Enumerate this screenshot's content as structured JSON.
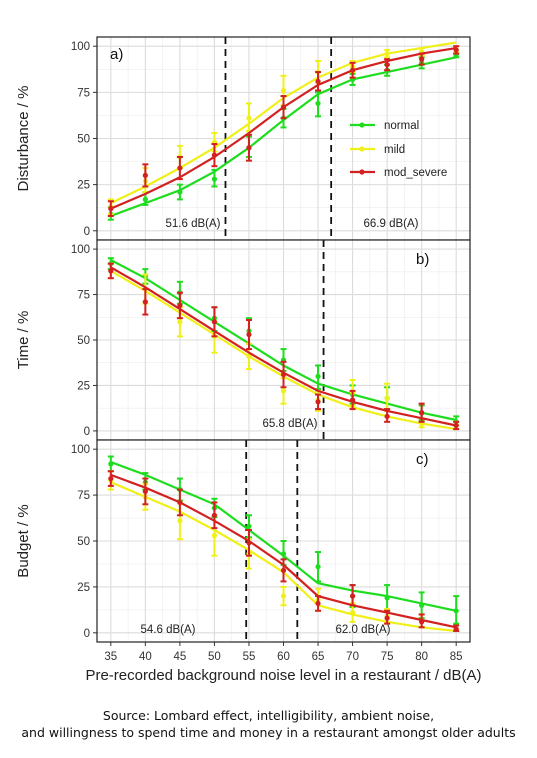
{
  "chart_data": [
    {
      "type": "line",
      "panel_label": "a)",
      "ylabel": "Disturbance / %",
      "x": [
        35,
        40,
        45,
        50,
        55,
        60,
        65,
        70,
        75,
        80,
        85
      ],
      "xlim": [
        33,
        87
      ],
      "ylim": [
        -5,
        105
      ],
      "yticks": [
        0,
        25,
        50,
        75,
        100
      ],
      "thresholds": [
        {
          "x": 51.6,
          "label": "51.6 dB(A)"
        },
        {
          "x": 66.9,
          "label": "66.9 dB(A)"
        }
      ],
      "legend": {
        "placement": "right",
        "entries": [
          "normal",
          "mild",
          "mod_severe"
        ]
      },
      "series": [
        {
          "name": "normal",
          "color": "#1edc1e",
          "fit": [
            8,
            15,
            22,
            32,
            45,
            60,
            74,
            82,
            86,
            90,
            94
          ],
          "points": [
            [
              35,
              9,
              6,
              13
            ],
            [
              40,
              17,
              14,
              21
            ],
            [
              45,
              21,
              17,
              25
            ],
            [
              50,
              28,
              24,
              33
            ],
            [
              55,
              45,
              40,
              51
            ],
            [
              60,
              61,
              56,
              66
            ],
            [
              65,
              69,
              62,
              75
            ],
            [
              70,
              82,
              79,
              85
            ],
            [
              75,
              87,
              84,
              90
            ],
            [
              80,
              91,
              88,
              94
            ],
            [
              85,
              95,
              94,
              96
            ]
          ]
        },
        {
          "name": "mild",
          "color": "#f0f019",
          "fit": [
            15,
            24,
            34,
            45,
            58,
            72,
            83,
            91,
            96,
            99,
            102
          ],
          "points": [
            [
              35,
              13,
              9,
              17
            ],
            [
              40,
              27,
              21,
              34
            ],
            [
              45,
              40,
              34,
              46
            ],
            [
              50,
              48,
              43,
              53
            ],
            [
              55,
              61,
              54,
              69
            ],
            [
              60,
              76,
              68,
              84
            ],
            [
              65,
              86,
              80,
              92
            ],
            [
              70,
              89,
              86,
              92
            ],
            [
              75,
              96,
              94,
              98
            ],
            [
              80,
              97,
              95,
              99
            ],
            [
              85,
              98,
              97,
              100
            ]
          ]
        },
        {
          "name": "mod_severe",
          "color": "#d32020",
          "fit": [
            12,
            20,
            29,
            40,
            53,
            67,
            79,
            87,
            92,
            96,
            99
          ],
          "points": [
            [
              35,
              12,
              8,
              16
            ],
            [
              40,
              30,
              24,
              36
            ],
            [
              45,
              34,
              28,
              40
            ],
            [
              50,
              41,
              35,
              47
            ],
            [
              55,
              45,
              38,
              52
            ],
            [
              60,
              67,
              61,
              73
            ],
            [
              65,
              81,
              76,
              86
            ],
            [
              70,
              87,
              83,
              91
            ],
            [
              75,
              90,
              87,
              93
            ],
            [
              80,
              93,
              90,
              96
            ],
            [
              85,
              98,
              96,
              100
            ]
          ]
        }
      ]
    },
    {
      "type": "line",
      "panel_label": "b)",
      "ylabel": "Time / %",
      "x": [
        35,
        40,
        45,
        50,
        55,
        60,
        65,
        70,
        75,
        80,
        85
      ],
      "xlim": [
        33,
        87
      ],
      "ylim": [
        -5,
        105
      ],
      "yticks": [
        0,
        25,
        50,
        75,
        100
      ],
      "thresholds": [
        {
          "x": 65.8,
          "label": "65.8 dB(A)"
        }
      ],
      "series": [
        {
          "name": "normal",
          "color": "#1edc1e",
          "fit": [
            94,
            84,
            72,
            60,
            48,
            36,
            26,
            20,
            15,
            10,
            6
          ],
          "points": [
            [
              35,
              92,
              89,
              95
            ],
            [
              40,
              85,
              81,
              89
            ],
            [
              45,
              76,
              70,
              82
            ],
            [
              50,
              62,
              55,
              68
            ],
            [
              55,
              55,
              48,
              62
            ],
            [
              60,
              39,
              33,
              45
            ],
            [
              65,
              30,
              23,
              36
            ],
            [
              70,
              20,
              15,
              25
            ],
            [
              75,
              18,
              12,
              24
            ],
            [
              80,
              10,
              6,
              14
            ],
            [
              85,
              5,
              3,
              8
            ]
          ]
        },
        {
          "name": "mild",
          "color": "#f0f019",
          "fit": [
            88,
            77,
            65,
            53,
            41,
            30,
            20,
            13,
            8,
            4,
            1
          ],
          "points": [
            [
              35,
              88,
              84,
              92
            ],
            [
              40,
              78,
              70,
              86
            ],
            [
              45,
              60,
              52,
              68
            ],
            [
              50,
              52,
              43,
              60
            ],
            [
              55,
              41,
              34,
              48
            ],
            [
              60,
              22,
              15,
              29
            ],
            [
              65,
              17,
              11,
              22
            ],
            [
              70,
              21,
              14,
              28
            ],
            [
              75,
              18,
              11,
              26
            ],
            [
              80,
              4,
              2,
              7
            ],
            [
              85,
              3,
              1,
              5
            ]
          ]
        },
        {
          "name": "mod_severe",
          "color": "#d32020",
          "fit": [
            90,
            79,
            67,
            55,
            43,
            32,
            22,
            16,
            11,
            7,
            3
          ],
          "points": [
            [
              35,
              88,
              84,
              92
            ],
            [
              40,
              71,
              64,
              78
            ],
            [
              45,
              69,
              62,
              76
            ],
            [
              50,
              60,
              52,
              68
            ],
            [
              55,
              53,
              45,
              61
            ],
            [
              60,
              31,
              24,
              38
            ],
            [
              65,
              16,
              12,
              20
            ],
            [
              70,
              17,
              12,
              22
            ],
            [
              75,
              8,
              5,
              12
            ],
            [
              80,
              10,
              5,
              15
            ],
            [
              85,
              3,
              1,
              5
            ]
          ]
        }
      ]
    },
    {
      "type": "line",
      "panel_label": "c)",
      "ylabel": "Budget / %",
      "xlabel": "Pre-recorded background noise level in a restaurant / dB(A)",
      "x": [
        35,
        40,
        45,
        50,
        55,
        60,
        65,
        70,
        75,
        80,
        85
      ],
      "xlim": [
        33,
        87
      ],
      "ylim": [
        -5,
        105
      ],
      "yticks": [
        0,
        25,
        50,
        75,
        100
      ],
      "xticks": [
        35,
        40,
        45,
        50,
        55,
        60,
        65,
        70,
        75,
        80,
        85
      ],
      "thresholds": [
        {
          "x": 54.6,
          "label": "54.6 dB(A)"
        },
        {
          "x": 62.0,
          "label": "62.0 dB(A)"
        }
      ],
      "series": [
        {
          "name": "normal",
          "color": "#1edc1e",
          "fit": [
            93,
            86,
            78,
            70,
            56,
            42,
            27,
            23,
            20,
            16,
            12
          ],
          "points": [
            [
              35,
              92,
              88,
              96
            ],
            [
              40,
              82,
              78,
              87
            ],
            [
              45,
              78,
              72,
              84
            ],
            [
              50,
              68,
              63,
              73
            ],
            [
              55,
              58,
              52,
              64
            ],
            [
              60,
              43,
              37,
              50
            ],
            [
              65,
              36,
              28,
              44
            ],
            [
              70,
              20,
              14,
              26
            ],
            [
              75,
              19,
              12,
              26
            ],
            [
              80,
              15,
              8,
              22
            ],
            [
              85,
              12,
              5,
              20
            ]
          ]
        },
        {
          "name": "mild",
          "color": "#f0f019",
          "fit": [
            82,
            74,
            66,
            56,
            45,
            33,
            15,
            10,
            6,
            3,
            1
          ],
          "points": [
            [
              35,
              83,
              78,
              88
            ],
            [
              40,
              74,
              67,
              81
            ],
            [
              45,
              61,
              51,
              71
            ],
            [
              50,
              53,
              42,
              64
            ],
            [
              55,
              43,
              35,
              51
            ],
            [
              60,
              20,
              15,
              25
            ],
            [
              65,
              18,
              12,
              24
            ],
            [
              70,
              11,
              6,
              16
            ],
            [
              75,
              9,
              5,
              13
            ],
            [
              80,
              6,
              3,
              10
            ],
            [
              85,
              2,
              1,
              4
            ]
          ]
        },
        {
          "name": "mod_severe",
          "color": "#d32020",
          "fit": [
            86,
            79,
            71,
            61,
            50,
            37,
            20,
            15,
            11,
            7,
            3
          ],
          "points": [
            [
              35,
              84,
              80,
              88
            ],
            [
              40,
              77,
              70,
              84
            ],
            [
              45,
              71,
              64,
              78
            ],
            [
              50,
              64,
              57,
              71
            ],
            [
              55,
              49,
              42,
              56
            ],
            [
              60,
              34,
              28,
              40
            ],
            [
              65,
              16,
              12,
              20
            ],
            [
              70,
              20,
              15,
              26
            ],
            [
              75,
              8,
              5,
              12
            ],
            [
              80,
              6,
              3,
              10
            ],
            [
              85,
              2,
              1,
              4
            ]
          ]
        }
      ]
    }
  ],
  "caption": {
    "line1": "Source: Lombard effect, intelligibility, ambient noise,",
    "line2": "and willingness to spend time and money in a restaurant amongst older adults"
  }
}
